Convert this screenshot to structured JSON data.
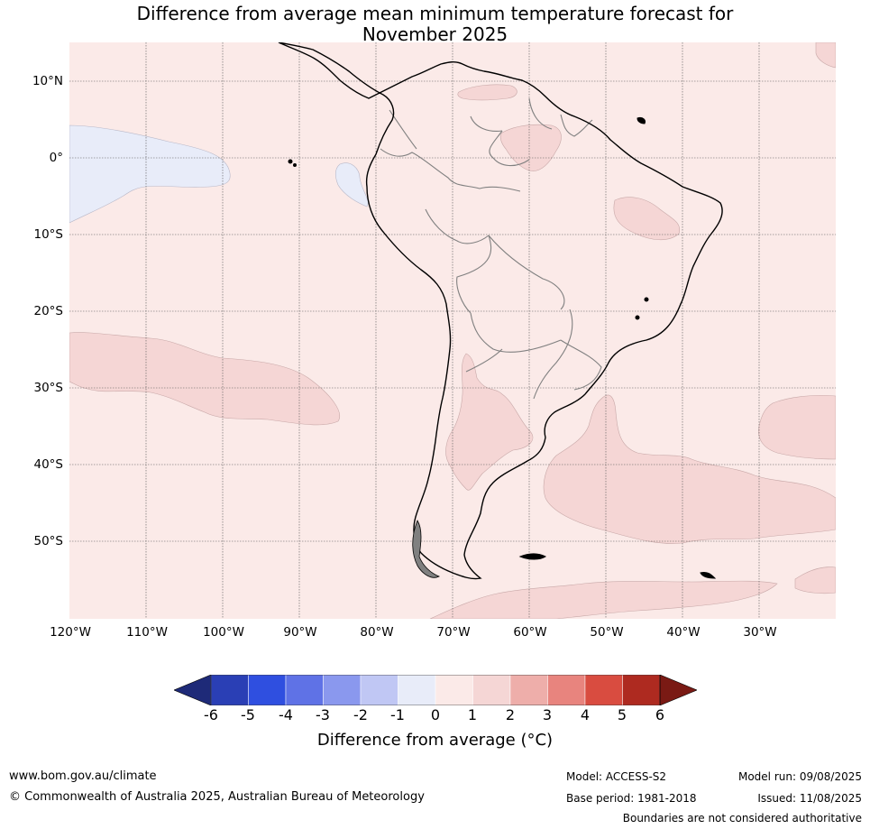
{
  "title_line1": "Difference from average mean minimum temperature forecast for",
  "title_line2": "November 2025",
  "map": {
    "lat_labels": [
      "10°N",
      "0°",
      "10°S",
      "20°S",
      "30°S",
      "40°S",
      "50°S"
    ],
    "lon_labels": [
      "120°W",
      "110°W",
      "100°W",
      "90°W",
      "80°W",
      "70°W",
      "60°W",
      "50°W",
      "40°W",
      "30°W"
    ],
    "colors": {
      "background_0_1": "#fbeae8",
      "anomaly_1_2": "#f5d6d5",
      "anomaly_neg1_0": "#e8ecf9",
      "coast": "#000000",
      "borders": "#808080",
      "gridlines": "#555555"
    }
  },
  "colorbar": {
    "ticks": [
      "-6",
      "-5",
      "-4",
      "-3",
      "-2",
      "-1",
      "0",
      "1",
      "2",
      "3",
      "4",
      "5",
      "6"
    ],
    "colors": [
      "#1e2a78",
      "#2a3fb5",
      "#2f4fe0",
      "#5f72e6",
      "#8a98ee",
      "#c0c7f4",
      "#e8ecf9",
      "#fbeae8",
      "#f5d6d5",
      "#eeaeaa",
      "#e8847e",
      "#d94c40",
      "#ae2a20",
      "#7a1a14"
    ],
    "label": "Difference from average (°C)"
  },
  "footer": {
    "website": "www.bom.gov.au/climate",
    "copyright": "© Commonwealth of Australia 2025, Australian Bureau of Meteorology",
    "model": "Model: ACCESS-S2",
    "base_period": "Base period: 1981-2018",
    "model_run": "Model run: 09/08/2025",
    "issued": "Issued: 11/08/2025",
    "disclaimer": "Boundaries are not considered authoritative"
  }
}
